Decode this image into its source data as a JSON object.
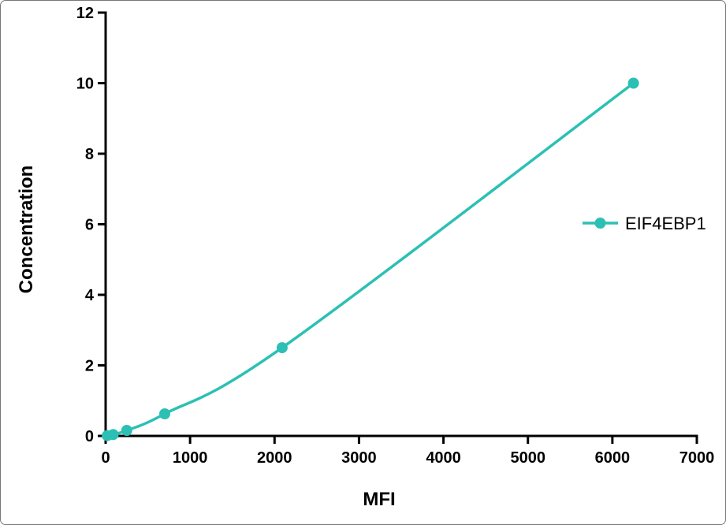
{
  "figure": {
    "background_color": "#ffffff",
    "border_color": "#777777",
    "axis_color": "#000000",
    "text_color": "#000000"
  },
  "chart_data": {
    "type": "line",
    "title": "",
    "xlabel": "MFI",
    "ylabel": "Concentration",
    "xlim": [
      0,
      7000
    ],
    "ylim": [
      0,
      12
    ],
    "x_ticks": [
      0,
      1000,
      2000,
      3000,
      4000,
      5000,
      6000,
      7000
    ],
    "y_ticks": [
      0,
      2,
      4,
      6,
      8,
      10,
      12
    ],
    "grid": false,
    "legend": {
      "position": "right",
      "entries": [
        {
          "label": "EIF4EBP1",
          "color": "#2cc0b4"
        }
      ]
    },
    "series": [
      {
        "name": "EIF4EBP1",
        "color": "#2cc0b4",
        "line_width": 3.5,
        "marker": "circle",
        "marker_radius": 7,
        "x": [
          20,
          90,
          250,
          700,
          2090,
          6250
        ],
        "y": [
          0.01,
          0.039,
          0.156,
          0.625,
          2.5,
          10
        ]
      }
    ]
  }
}
